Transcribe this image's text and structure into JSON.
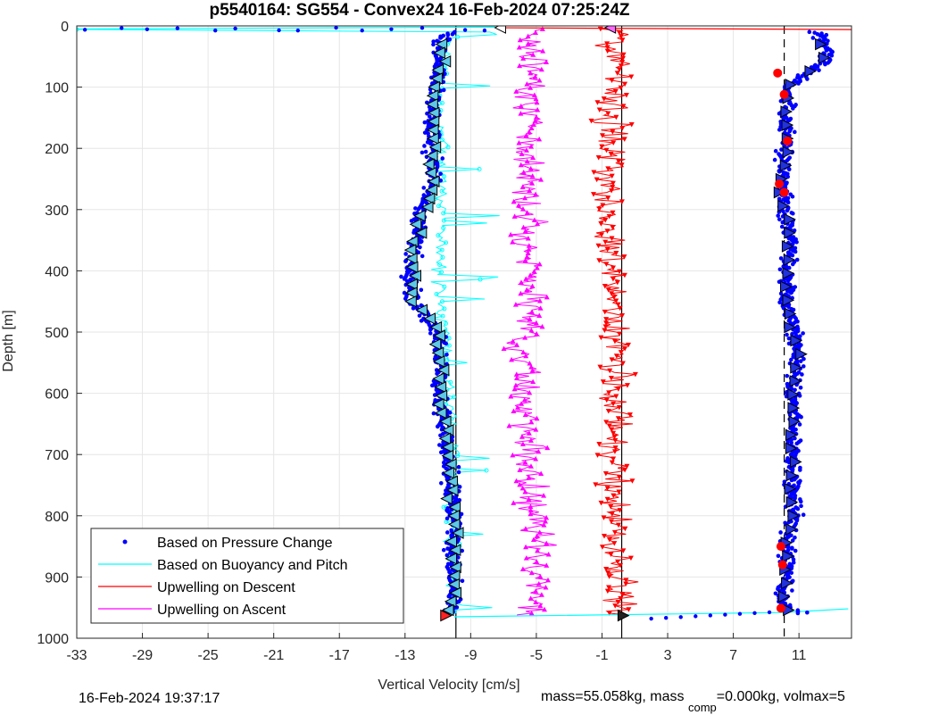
{
  "chart_data": {
    "type": "scatter",
    "title": "p5540164: SG554 - Convex24 16-Feb-2024 07:25:24Z",
    "xlabel": "Vertical Velocity [cm/s]",
    "ylabel": "Depth [m]",
    "xlim": [
      -33,
      14.2
    ],
    "ylim": [
      0,
      1000
    ],
    "y_reversed": true,
    "grid": true,
    "xticks": [
      -33,
      -29,
      -25,
      -21,
      -17,
      -13,
      -9,
      -5,
      -1,
      3,
      7,
      11
    ],
    "yticks": [
      0,
      100,
      200,
      300,
      400,
      500,
      600,
      700,
      800,
      900,
      1000
    ],
    "legend_position": "bottom-left",
    "reference_lines": [
      {
        "x": -9.9,
        "style": "solid"
      },
      {
        "x": 0.2,
        "style": "solid"
      },
      {
        "x": 10.1,
        "style": "dashed"
      }
    ],
    "series": [
      {
        "name": "Based on Pressure Change",
        "color": "#0000ff",
        "style": "dots",
        "descent": {
          "depth": [
            0,
            10,
            20,
            40,
            60,
            100,
            150,
            200,
            250,
            300,
            350,
            400,
            450,
            500,
            550,
            600,
            650,
            700,
            750,
            800,
            850,
            900,
            950,
            965
          ],
          "velocity": [
            -33,
            -10,
            -10.8,
            -11,
            -10.8,
            -11.2,
            -11.3,
            -11.4,
            -11.2,
            -12.0,
            -12.3,
            -12.7,
            -12.5,
            -11.0,
            -10.8,
            -10.9,
            -10.6,
            -10.4,
            -10.2,
            -10.0,
            -10.0,
            -10.0,
            -10.0,
            -10.5
          ]
        },
        "ascent": {
          "depth": [
            965,
            950,
            900,
            850,
            800,
            750,
            700,
            650,
            600,
            550,
            500,
            450,
            400,
            350,
            300,
            250,
            200,
            150,
            100,
            60,
            40,
            20,
            5
          ],
          "velocity": [
            12.0,
            10.0,
            10.3,
            10.2,
            10.7,
            10.6,
            10.6,
            10.7,
            10.6,
            10.9,
            10.7,
            10.2,
            10.3,
            10.5,
            10.2,
            10.0,
            10.2,
            10.3,
            10.3,
            12.5,
            12.8,
            12.3,
            11.8
          ]
        }
      },
      {
        "name": "Based on Buoyancy and Pitch",
        "color": "#00ffff",
        "style": "line",
        "descent": {
          "depth": [
            0,
            10,
            20,
            60,
            100,
            150,
            200,
            250,
            300,
            350,
            400,
            450,
            500,
            550,
            600,
            650,
            700,
            750,
            800,
            850,
            900,
            950,
            965
          ],
          "velocity": [
            -33,
            -8,
            -10.5,
            -10.6,
            -10.8,
            -10.9,
            -10.8,
            -10.7,
            -10.6,
            -10.8,
            -10.9,
            -10.8,
            -10.6,
            -10.4,
            -10.3,
            -10.2,
            -10.1,
            -10.1,
            -10.0,
            -10.0,
            -10.0,
            -10.0,
            -10.0
          ]
        },
        "ascent": {
          "depth": [
            965,
            958,
            952
          ],
          "velocity": [
            -10.0,
            10.0,
            14.0
          ]
        }
      },
      {
        "name": "Upwelling on Descent",
        "color": "#ff0000",
        "style": "line-triangle-down",
        "depth": [
          5,
          50,
          100,
          150,
          200,
          250,
          300,
          350,
          400,
          450,
          500,
          550,
          600,
          650,
          700,
          750,
          800,
          850,
          900,
          950,
          962
        ],
        "velocity": [
          0.0,
          -0.2,
          -0.1,
          -0.4,
          -0.5,
          -0.3,
          -0.6,
          -0.5,
          -0.3,
          -0.4,
          -0.2,
          -0.1,
          -0.3,
          0.0,
          -0.3,
          -0.2,
          -0.2,
          -0.3,
          -0.1,
          -0.2,
          -0.1
        ]
      },
      {
        "name": "Upwelling on Ascent",
        "color": "#ff00ff",
        "style": "line-triangle-up",
        "depth": [
          962,
          900,
          850,
          800,
          750,
          700,
          650,
          600,
          550,
          500,
          450,
          400,
          350,
          300,
          250,
          200,
          150,
          100,
          50,
          5
        ],
        "velocity": [
          -5.0,
          -5.0,
          -5.1,
          -5.3,
          -5.4,
          -5.5,
          -5.6,
          -5.6,
          -5.7,
          -5.6,
          -5.4,
          -5.3,
          -5.4,
          -5.5,
          -5.4,
          -5.5,
          -5.4,
          -5.2,
          -5.3,
          -5.0
        ]
      }
    ]
  },
  "footer": {
    "timestamp": "16-Feb-2024 19:37:17",
    "mass_text_main": "mass=55.058kg, mass",
    "mass_text_sub": "comp",
    "mass_text_tail": "=0.000kg, volmax=5"
  }
}
